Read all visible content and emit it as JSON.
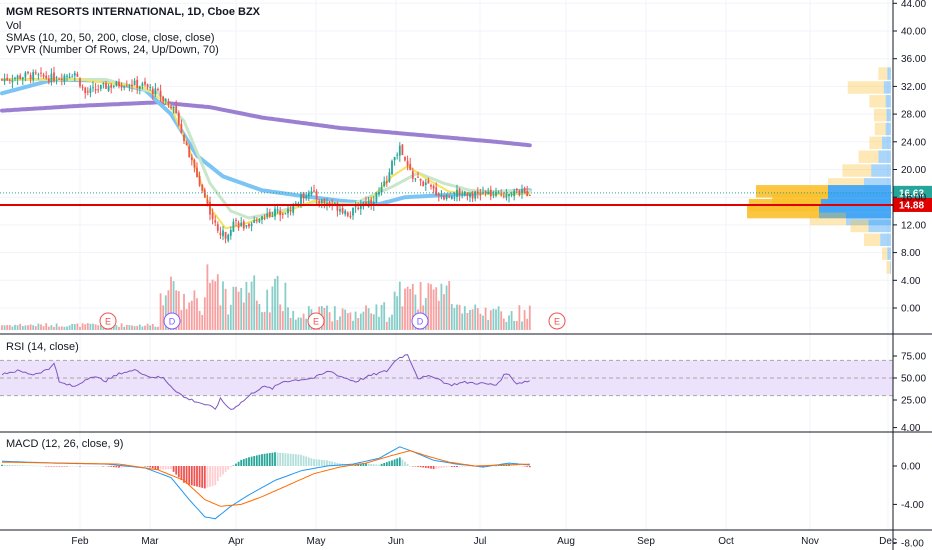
{
  "header": {
    "title": "MGM RESORTS INTERNATIONAL, 1D, Cboe BZX",
    "indicators": [
      "Vol",
      "SMAs (10, 20, 50, 200, close, close, close)",
      "VPVR (Number Of Rows, 24, Up/Down, 70)"
    ]
  },
  "colors": {
    "up": "#26a69a",
    "down": "#ef5350",
    "sma10": "#f7e35e",
    "sma20": "#c8e6c9",
    "sma50": "#7cc4f4",
    "sma200": "#9b7fd1",
    "support_line": "#e00000",
    "rsi_line": "#7e57c2",
    "rsi_band": "#ede2fb",
    "macd": "#2196f3",
    "signal": "#ff6d00",
    "vp_up": "#42a5f5",
    "vp_down": "#fbc02d"
  },
  "chart_data": [
    {
      "type": "candlestick",
      "name": "price",
      "y_axis_ticks": [
        "44.00",
        "40.00",
        "36.00",
        "32.00",
        "28.00",
        "24.00",
        "20.00",
        "16.00",
        "12.00",
        "8.00",
        "4.00",
        "0.00"
      ],
      "ylim": [
        -2,
        44
      ],
      "x_axis_labels": [
        "Feb",
        "Mar",
        "Apr",
        "May",
        "Jun",
        "Jul",
        "Aug",
        "Sep",
        "Oct",
        "Nov",
        "Dec"
      ],
      "current_price": "16.63",
      "support_price": "14.88",
      "events": [
        "E",
        "D",
        "E",
        "D",
        "E"
      ],
      "price_path": [
        [
          0,
          33
        ],
        [
          10,
          33.6
        ],
        [
          20,
          33.2
        ],
        [
          28,
          34
        ],
        [
          32,
          31
        ],
        [
          40,
          32
        ],
        [
          48,
          32.5
        ],
        [
          55,
          32
        ],
        [
          60,
          31
        ],
        [
          65,
          29.5
        ],
        [
          68,
          27
        ],
        [
          71,
          23
        ],
        [
          74,
          20
        ],
        [
          77,
          17
        ],
        [
          80,
          14
        ],
        [
          83,
          11
        ],
        [
          86,
          10.5
        ],
        [
          89,
          12.5
        ],
        [
          92,
          12
        ],
        [
          95,
          11.2
        ],
        [
          98,
          13
        ],
        [
          102,
          13.5
        ],
        [
          106,
          14
        ],
        [
          110,
          14
        ],
        [
          114,
          15.5
        ],
        [
          118,
          17
        ],
        [
          122,
          15.5
        ],
        [
          126,
          15
        ],
        [
          130,
          14.5
        ],
        [
          134,
          13.5
        ],
        [
          138,
          15
        ],
        [
          142,
          15.5
        ],
        [
          146,
          17
        ],
        [
          149,
          19.5
        ],
        [
          151,
          22
        ],
        [
          153,
          23
        ],
        [
          155,
          21
        ],
        [
          158,
          19
        ],
        [
          162,
          18
        ],
        [
          166,
          17
        ],
        [
          170,
          16
        ],
        [
          174,
          16.5
        ],
        [
          178,
          16.8
        ],
        [
          182,
          16.3
        ],
        [
          186,
          16.6
        ],
        [
          190,
          16.2
        ],
        [
          195,
          16.8
        ],
        [
          200,
          16.6
        ],
        [
          203,
          16.63
        ]
      ],
      "sma10": [
        [
          0,
          33
        ],
        [
          30,
          33
        ],
        [
          55,
          31.8
        ],
        [
          65,
          29
        ],
        [
          72,
          23
        ],
        [
          80,
          14.5
        ],
        [
          86,
          11.5
        ],
        [
          92,
          12
        ],
        [
          100,
          13
        ],
        [
          110,
          14
        ],
        [
          120,
          15.5
        ],
        [
          130,
          14.8
        ],
        [
          140,
          15
        ],
        [
          150,
          19
        ],
        [
          156,
          20.5
        ],
        [
          164,
          18.5
        ],
        [
          172,
          16.8
        ],
        [
          180,
          16.6
        ],
        [
          190,
          16.4
        ],
        [
          203,
          16.5
        ]
      ],
      "sma20": [
        [
          0,
          33
        ],
        [
          40,
          33
        ],
        [
          60,
          31
        ],
        [
          70,
          27
        ],
        [
          80,
          18
        ],
        [
          88,
          14
        ],
        [
          95,
          13
        ],
        [
          105,
          13.8
        ],
        [
          120,
          15.3
        ],
        [
          135,
          15
        ],
        [
          150,
          17.5
        ],
        [
          160,
          19.5
        ],
        [
          170,
          18
        ],
        [
          180,
          17
        ],
        [
          190,
          16.8
        ],
        [
          203,
          16.9
        ]
      ],
      "sma50": [
        [
          0,
          31
        ],
        [
          20,
          33
        ],
        [
          40,
          32.8
        ],
        [
          55,
          31.5
        ],
        [
          65,
          28
        ],
        [
          75,
          22
        ],
        [
          85,
          19
        ],
        [
          100,
          17
        ],
        [
          115,
          16.2
        ],
        [
          130,
          15.5
        ],
        [
          145,
          15
        ],
        [
          155,
          16
        ],
        [
          170,
          16.3
        ],
        [
          185,
          16.6
        ],
        [
          203,
          17
        ]
      ],
      "sma200": [
        [
          0,
          28.5
        ],
        [
          30,
          29.2
        ],
        [
          60,
          29.7
        ],
        [
          80,
          29
        ],
        [
          100,
          27.5
        ],
        [
          130,
          26
        ],
        [
          160,
          25
        ],
        [
          190,
          24
        ],
        [
          203,
          23.5
        ]
      ],
      "volume_profile": [
        {
          "price": 34,
          "up": 4,
          "down": 10
        },
        {
          "price": 32,
          "up": 8,
          "down": 40
        },
        {
          "price": 30,
          "up": 6,
          "down": 18
        },
        {
          "price": 28,
          "up": 5,
          "down": 14
        },
        {
          "price": 26,
          "up": 6,
          "down": 12
        },
        {
          "price": 24,
          "up": 10,
          "down": 14
        },
        {
          "price": 22,
          "up": 14,
          "down": 22
        },
        {
          "price": 20,
          "up": 22,
          "down": 32
        },
        {
          "price": 18,
          "up": 30,
          "down": 40
        },
        {
          "price": 17,
          "up": 70,
          "down": 80
        },
        {
          "price": 16,
          "up": 70,
          "down": 62
        },
        {
          "price": 15,
          "up": 78,
          "down": 80
        },
        {
          "price": 14,
          "up": 80,
          "down": 80
        },
        {
          "price": 13,
          "up": 50,
          "down": 40
        },
        {
          "price": 12,
          "up": 25,
          "down": 20
        },
        {
          "price": 10,
          "up": 12,
          "down": 18
        },
        {
          "price": 8,
          "up": 4,
          "down": 6
        },
        {
          "price": 6,
          "up": 1,
          "down": 4
        }
      ]
    },
    {
      "type": "line",
      "name": "RSI (14, close)",
      "y_axis_ticks": [
        "75.00",
        "50.00",
        "25.00"
      ],
      "ylim": [
        0,
        100
      ],
      "band": [
        30,
        70
      ],
      "values": [
        [
          0,
          55
        ],
        [
          6,
          58
        ],
        [
          12,
          54
        ],
        [
          18,
          60
        ],
        [
          20,
          68
        ],
        [
          22,
          45
        ],
        [
          28,
          40
        ],
        [
          34,
          52
        ],
        [
          40,
          47
        ],
        [
          46,
          56
        ],
        [
          52,
          59
        ],
        [
          56,
          52
        ],
        [
          62,
          50
        ],
        [
          66,
          38
        ],
        [
          70,
          28
        ],
        [
          74,
          24
        ],
        [
          78,
          20
        ],
        [
          82,
          15
        ],
        [
          84,
          26
        ],
        [
          88,
          14
        ],
        [
          92,
          22
        ],
        [
          96,
          32
        ],
        [
          100,
          40
        ],
        [
          104,
          38
        ],
        [
          108,
          46
        ],
        [
          114,
          48
        ],
        [
          120,
          50
        ],
        [
          126,
          58
        ],
        [
          130,
          52
        ],
        [
          136,
          46
        ],
        [
          142,
          53
        ],
        [
          148,
          58
        ],
        [
          152,
          72
        ],
        [
          156,
          77
        ],
        [
          160,
          50
        ],
        [
          166,
          52
        ],
        [
          172,
          42
        ],
        [
          178,
          45
        ],
        [
          184,
          44
        ],
        [
          190,
          42
        ],
        [
          194,
          56
        ],
        [
          198,
          44
        ],
        [
          203,
          47
        ]
      ]
    },
    {
      "type": "macd",
      "name": "MACD (12, 26, close, 9)",
      "y_axis_ticks": [
        "4.00",
        "0.00",
        "-4.00",
        "-8.00"
      ],
      "ylim": [
        -8,
        4
      ],
      "macd": [
        [
          0,
          0.5
        ],
        [
          20,
          0.3
        ],
        [
          40,
          0.2
        ],
        [
          55,
          -0.2
        ],
        [
          65,
          -1.2
        ],
        [
          72,
          -3.5
        ],
        [
          78,
          -5.3
        ],
        [
          82,
          -5.5
        ],
        [
          88,
          -4.2
        ],
        [
          95,
          -3
        ],
        [
          105,
          -1.5
        ],
        [
          115,
          -0.5
        ],
        [
          125,
          0
        ],
        [
          135,
          0.2
        ],
        [
          145,
          0.8
        ],
        [
          153,
          2.0
        ],
        [
          158,
          1.5
        ],
        [
          166,
          0.6
        ],
        [
          175,
          0.2
        ],
        [
          185,
          -0.1
        ],
        [
          195,
          0.3
        ],
        [
          203,
          0.1
        ]
      ],
      "signal": [
        [
          0,
          0.4
        ],
        [
          25,
          0.3
        ],
        [
          45,
          0.2
        ],
        [
          60,
          -0.4
        ],
        [
          70,
          -1.5
        ],
        [
          78,
          -3.5
        ],
        [
          84,
          -4.2
        ],
        [
          92,
          -4
        ],
        [
          100,
          -3.2
        ],
        [
          110,
          -2
        ],
        [
          120,
          -0.8
        ],
        [
          130,
          -0.1
        ],
        [
          140,
          0.3
        ],
        [
          150,
          1.1
        ],
        [
          157,
          1.6
        ],
        [
          164,
          1.0
        ],
        [
          172,
          0.4
        ],
        [
          182,
          0
        ],
        [
          192,
          0.1
        ],
        [
          203,
          0.2
        ]
      ]
    }
  ]
}
